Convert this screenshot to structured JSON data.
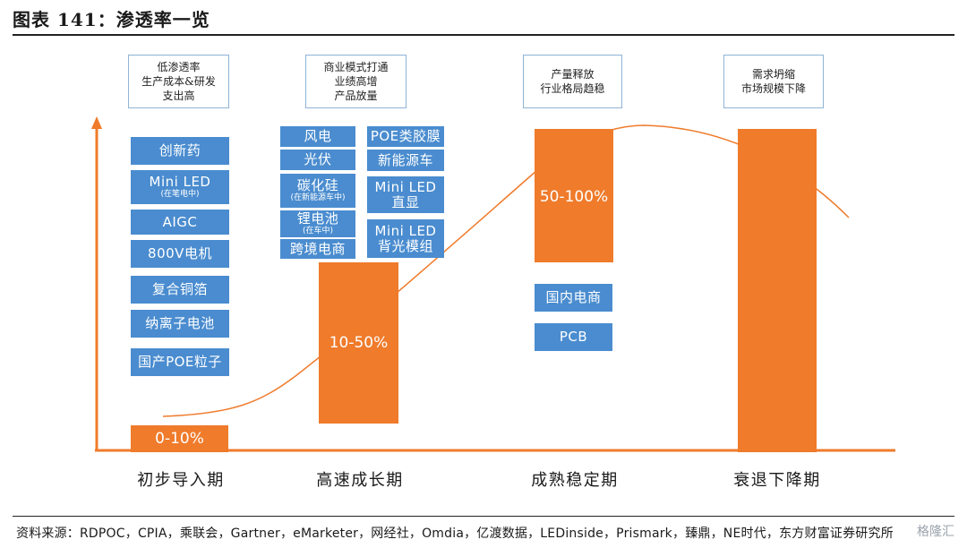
{
  "figure": {
    "title": "图表 141：渗透率一览",
    "source": "资料来源：RDPOC，CPIA，乘联会，Gartner，eMarketer，网经社，Omdia，亿渡数据，LEDinside，Prismark，臻鼎，NE时代，东方财富证券研究所",
    "watermark": "格隆汇"
  },
  "colors": {
    "bar": "#ef7b2b",
    "tag": "#4a8ccf",
    "note_border": "#8fb3d6",
    "axis": "#ef7b2b"
  },
  "stages": [
    {
      "label": "初步导入期",
      "note": [
        "低渗透率",
        "生产成本&研发",
        "支出高"
      ],
      "penetration": "0-10%"
    },
    {
      "label": "高速成长期",
      "note": [
        "商业模式打通",
        "业绩高增",
        "产品放量"
      ],
      "penetration": "10-50%"
    },
    {
      "label": "成熟稳定期",
      "note": [
        "产量释放",
        "行业格局趋稳"
      ],
      "penetration": "50-100%"
    },
    {
      "label": "衰退下降期",
      "note": [
        "需求坍缩",
        "市场规模下降"
      ],
      "penetration": ""
    }
  ],
  "tags": {
    "intro": [
      {
        "main": "创新药"
      },
      {
        "main": "Mini LED",
        "sub": "(在笔电中)"
      },
      {
        "main": "AIGC"
      },
      {
        "main": "800V电机"
      },
      {
        "main": "复合铜箔"
      },
      {
        "main": "纳离子电池"
      },
      {
        "main": "国产POE粒子"
      }
    ],
    "growth_left": [
      {
        "main": "风电"
      },
      {
        "main": "光伏"
      },
      {
        "main": "碳化硅",
        "sub": "(在新能源车中)"
      },
      {
        "main": "锂电池",
        "sub": "(在车中)"
      },
      {
        "main": "跨境电商"
      }
    ],
    "growth_right": [
      {
        "main": "POE类胶膜"
      },
      {
        "main": "新能源车"
      },
      {
        "main": "Mini LED",
        "sub": "直显"
      },
      {
        "main": "Mini LED",
        "sub": "背光模组"
      }
    ],
    "mature": [
      {
        "main": "国内电商"
      },
      {
        "main": "PCB"
      }
    ]
  }
}
